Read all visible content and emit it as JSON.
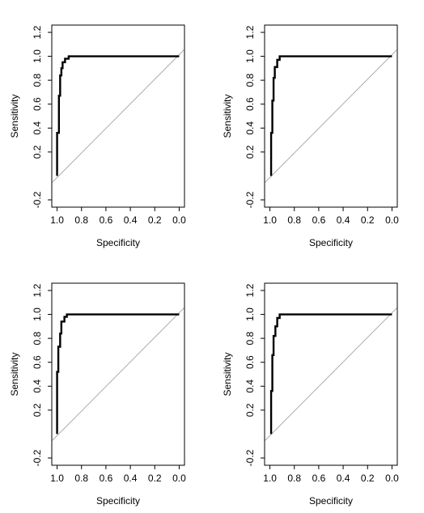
{
  "chart_data": [
    {
      "type": "line",
      "xlabel": "Specificity",
      "ylabel": "Sensitivity",
      "xlim": [
        1.0,
        0.0
      ],
      "ylim": [
        -0.2,
        1.2
      ],
      "xticks": [
        "1.0",
        "0.8",
        "0.6",
        "0.4",
        "0.2",
        "0.0"
      ],
      "yticks": [
        "-0.2",
        "0.2",
        "0.4",
        "0.6",
        "0.8",
        "1.0",
        "1.2"
      ],
      "reference_line": [
        [
          1.0,
          0.0
        ],
        [
          0.0,
          1.0
        ]
      ],
      "series": [
        {
          "x": [
            1.0,
            1.0,
            0.985,
            0.985,
            0.975,
            0.975,
            0.965,
            0.965,
            0.955,
            0.955,
            0.935,
            0.935,
            0.905,
            0.905,
            0.0
          ],
          "y": [
            0.0,
            0.36,
            0.36,
            0.67,
            0.67,
            0.84,
            0.84,
            0.9,
            0.9,
            0.95,
            0.95,
            0.98,
            0.98,
            1.0,
            1.0
          ]
        }
      ]
    },
    {
      "type": "line",
      "xlabel": "Specificity",
      "ylabel": "Sensitivity",
      "xlim": [
        1.0,
        0.0
      ],
      "ylim": [
        -0.2,
        1.2
      ],
      "xticks": [
        "1.0",
        "0.8",
        "0.6",
        "0.4",
        "0.2",
        "0.0"
      ],
      "yticks": [
        "-0.2",
        "0.2",
        "0.4",
        "0.6",
        "0.8",
        "1.0",
        "1.2"
      ],
      "reference_line": [
        [
          1.0,
          0.0
        ],
        [
          0.0,
          1.0
        ]
      ],
      "series": [
        {
          "x": [
            0.99,
            0.99,
            0.98,
            0.98,
            0.97,
            0.97,
            0.96,
            0.96,
            0.94,
            0.94,
            0.92,
            0.92,
            0.0
          ],
          "y": [
            0.0,
            0.36,
            0.36,
            0.63,
            0.63,
            0.82,
            0.82,
            0.91,
            0.91,
            0.97,
            0.97,
            1.0,
            1.0
          ]
        }
      ]
    },
    {
      "type": "line",
      "xlabel": "Specificity",
      "ylabel": "Sensitivity",
      "xlim": [
        1.0,
        0.0
      ],
      "ylim": [
        -0.2,
        1.2
      ],
      "xticks": [
        "1.0",
        "0.8",
        "0.6",
        "0.4",
        "0.2",
        "0.0"
      ],
      "yticks": [
        "-0.2",
        "0.2",
        "0.4",
        "0.6",
        "0.8",
        "1.0",
        "1.2"
      ],
      "reference_line": [
        [
          1.0,
          0.0
        ],
        [
          0.0,
          1.0
        ]
      ],
      "series": [
        {
          "x": [
            1.0,
            1.0,
            0.99,
            0.99,
            0.975,
            0.975,
            0.965,
            0.965,
            0.94,
            0.94,
            0.92,
            0.92,
            0.0
          ],
          "y": [
            0.0,
            0.52,
            0.52,
            0.73,
            0.73,
            0.84,
            0.84,
            0.94,
            0.94,
            0.98,
            0.98,
            1.0,
            1.0
          ]
        }
      ]
    },
    {
      "type": "line",
      "xlabel": "Specificity",
      "ylabel": "Sensitivity",
      "xlim": [
        1.0,
        0.0
      ],
      "ylim": [
        -0.2,
        1.2
      ],
      "xticks": [
        "1.0",
        "0.8",
        "0.6",
        "0.4",
        "0.2",
        "0.0"
      ],
      "yticks": [
        "-0.2",
        "0.2",
        "0.4",
        "0.6",
        "0.8",
        "1.0",
        "1.2"
      ],
      "reference_line": [
        [
          1.0,
          0.0
        ],
        [
          0.0,
          1.0
        ]
      ],
      "series": [
        {
          "x": [
            0.99,
            0.99,
            0.98,
            0.98,
            0.97,
            0.97,
            0.955,
            0.955,
            0.94,
            0.94,
            0.92,
            0.92,
            0.0
          ],
          "y": [
            0.0,
            0.36,
            0.36,
            0.66,
            0.66,
            0.82,
            0.82,
            0.9,
            0.9,
            0.97,
            0.97,
            1.0,
            1.0
          ]
        }
      ]
    }
  ]
}
